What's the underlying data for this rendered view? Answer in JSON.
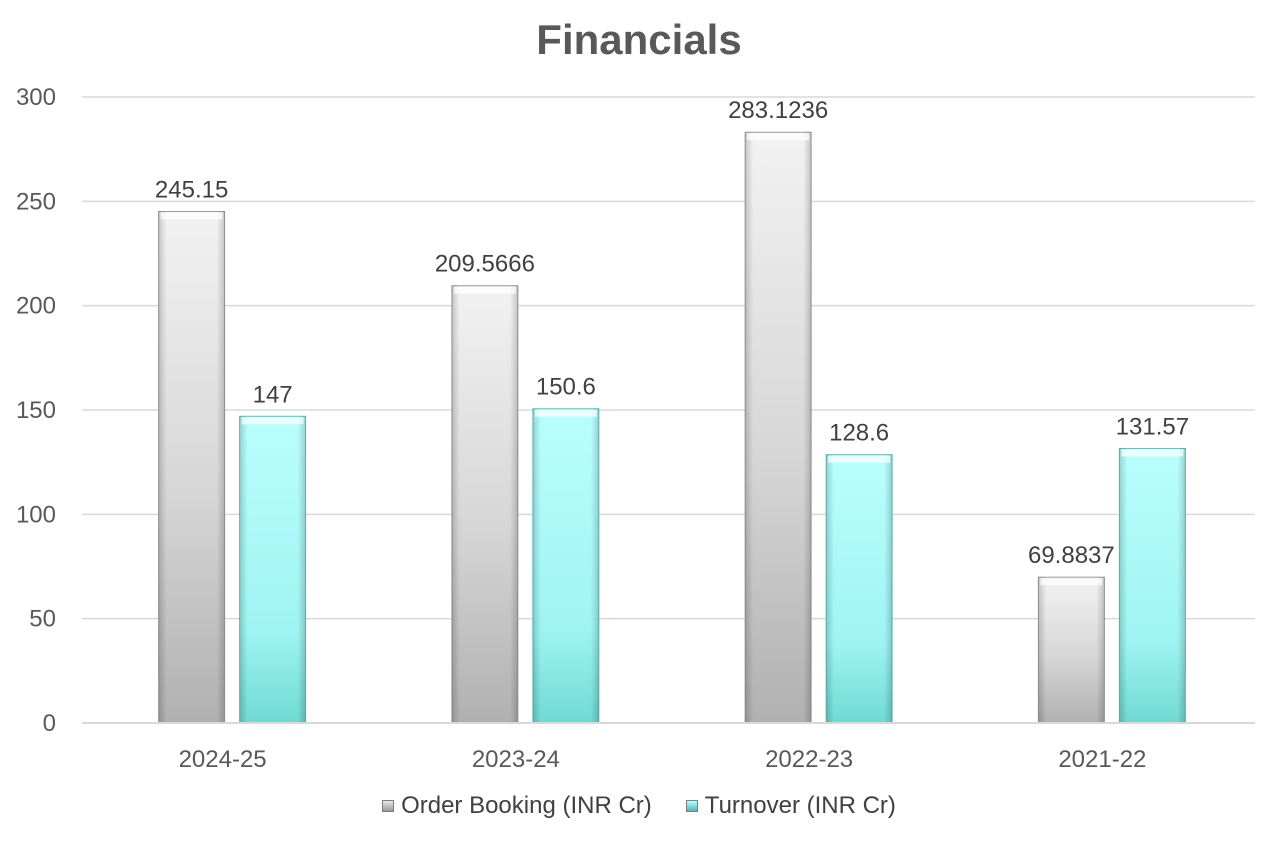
{
  "chart_data": {
    "type": "bar",
    "title": "Financials",
    "xlabel": "",
    "ylabel": "",
    "categories": [
      "2024-25",
      "2023-24",
      "2022-23",
      "2021-22"
    ],
    "series": [
      {
        "name": "Order Booking (INR Cr)",
        "values": [
          245.15,
          209.5666,
          283.1236,
          69.8837
        ],
        "labels": [
          "245.15",
          "209.5666",
          "283.1236",
          "69.8837"
        ],
        "color": "#c9c9c9"
      },
      {
        "name": "Turnover (INR Cr)",
        "values": [
          147,
          150.6,
          128.6,
          131.57
        ],
        "labels": [
          "147",
          "150.6",
          "128.6",
          "131.57"
        ],
        "color": "#8ff4f2"
      }
    ],
    "ylim": [
      0,
      300
    ],
    "yticks": [
      0,
      50,
      100,
      150,
      200,
      250,
      300
    ],
    "ytick_labels": [
      "0",
      "50",
      "100",
      "150",
      "200",
      "250",
      "300"
    ],
    "grid": true,
    "legend_position": "bottom",
    "colors": {
      "title": "#595959",
      "gridline": "#d9d9d9",
      "axis": "#d9d9d9",
      "label": "#404040",
      "tick": "#595959"
    }
  }
}
